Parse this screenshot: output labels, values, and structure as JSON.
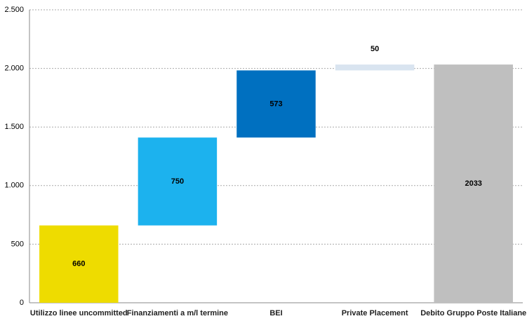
{
  "chart_data": {
    "type": "waterfall",
    "categories": [
      "Utilizzo linee uncommitted",
      "Finanziamenti a m/l termine",
      "BEI",
      "Private Placement",
      "Debito Gruppo Poste Italiane"
    ],
    "values": [
      660,
      750,
      573,
      50,
      2033
    ],
    "is_total": [
      false,
      false,
      false,
      false,
      true
    ],
    "colors": [
      "#eedc00",
      "#1cb2ee",
      "#0070c0",
      "#d9e4f0",
      "#bfbfbf"
    ],
    "ylim": [
      0,
      2500
    ],
    "yticks": [
      0,
      500,
      {
        "value": 1000,
        "label": "1.000"
      },
      {
        "value": 1500,
        "label": "1.500"
      },
      {
        "value": 2000,
        "label": "2.000"
      },
      {
        "value": 2500,
        "label": "2.500"
      }
    ],
    "grid": true
  }
}
